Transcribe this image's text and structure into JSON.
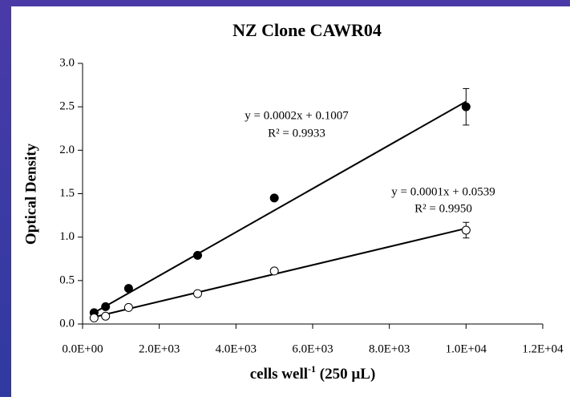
{
  "chart_data": {
    "type": "scatter",
    "title": "NZ Clone CAWR04",
    "ylabel": "Optical Density",
    "xlabel_parts": [
      "cells well",
      "-1",
      " (250 µL)"
    ],
    "xlim": [
      0,
      12000
    ],
    "ylim": [
      0,
      3
    ],
    "xticks": [
      {
        "value": 0,
        "label": "0.0E+00"
      },
      {
        "value": 2000,
        "label": "2.0E+03"
      },
      {
        "value": 4000,
        "label": "4.0E+03"
      },
      {
        "value": 6000,
        "label": "6.0E+03"
      },
      {
        "value": 8000,
        "label": "8.0E+03"
      },
      {
        "value": 10000,
        "label": "1.0E+04"
      },
      {
        "value": 12000,
        "label": "1.2E+04"
      }
    ],
    "yticks": [
      {
        "value": 0,
        "label": "0.0"
      },
      0.5,
      {
        "value": 1,
        "label": "1.0"
      },
      1.5,
      {
        "value": 2,
        "label": "2.0"
      },
      2.5,
      {
        "value": 3,
        "label": "3.0"
      }
    ],
    "series": [
      {
        "color": "#000000",
        "marker": "filled",
        "x": [
          300,
          600,
          1200,
          3000,
          5000,
          10000
        ],
        "values": [
          0.13,
          0.2,
          0.41,
          0.79,
          1.45,
          2.5
        ],
        "errors": [
          null,
          null,
          null,
          null,
          null,
          0.21
        ],
        "trendline": {
          "x": [
            300,
            10000
          ],
          "values": [
            0.13,
            2.56
          ]
        }
      },
      {
        "color": "#000000",
        "marker": "open",
        "x": [
          300,
          600,
          1200,
          3000,
          5000,
          10000
        ],
        "values": [
          0.07,
          0.09,
          0.19,
          0.35,
          0.61,
          1.08
        ],
        "errors": [
          null,
          null,
          null,
          null,
          null,
          0.09
        ],
        "trendline": {
          "x": [
            300,
            10000
          ],
          "values": [
            0.08,
            1.1
          ]
        }
      }
    ],
    "annotations": [
      "y = 0.0002x + 0.1007",
      "R² = 0.9933",
      "y = 0.0001x + 0.0539",
      "R² = 0.9950"
    ]
  }
}
